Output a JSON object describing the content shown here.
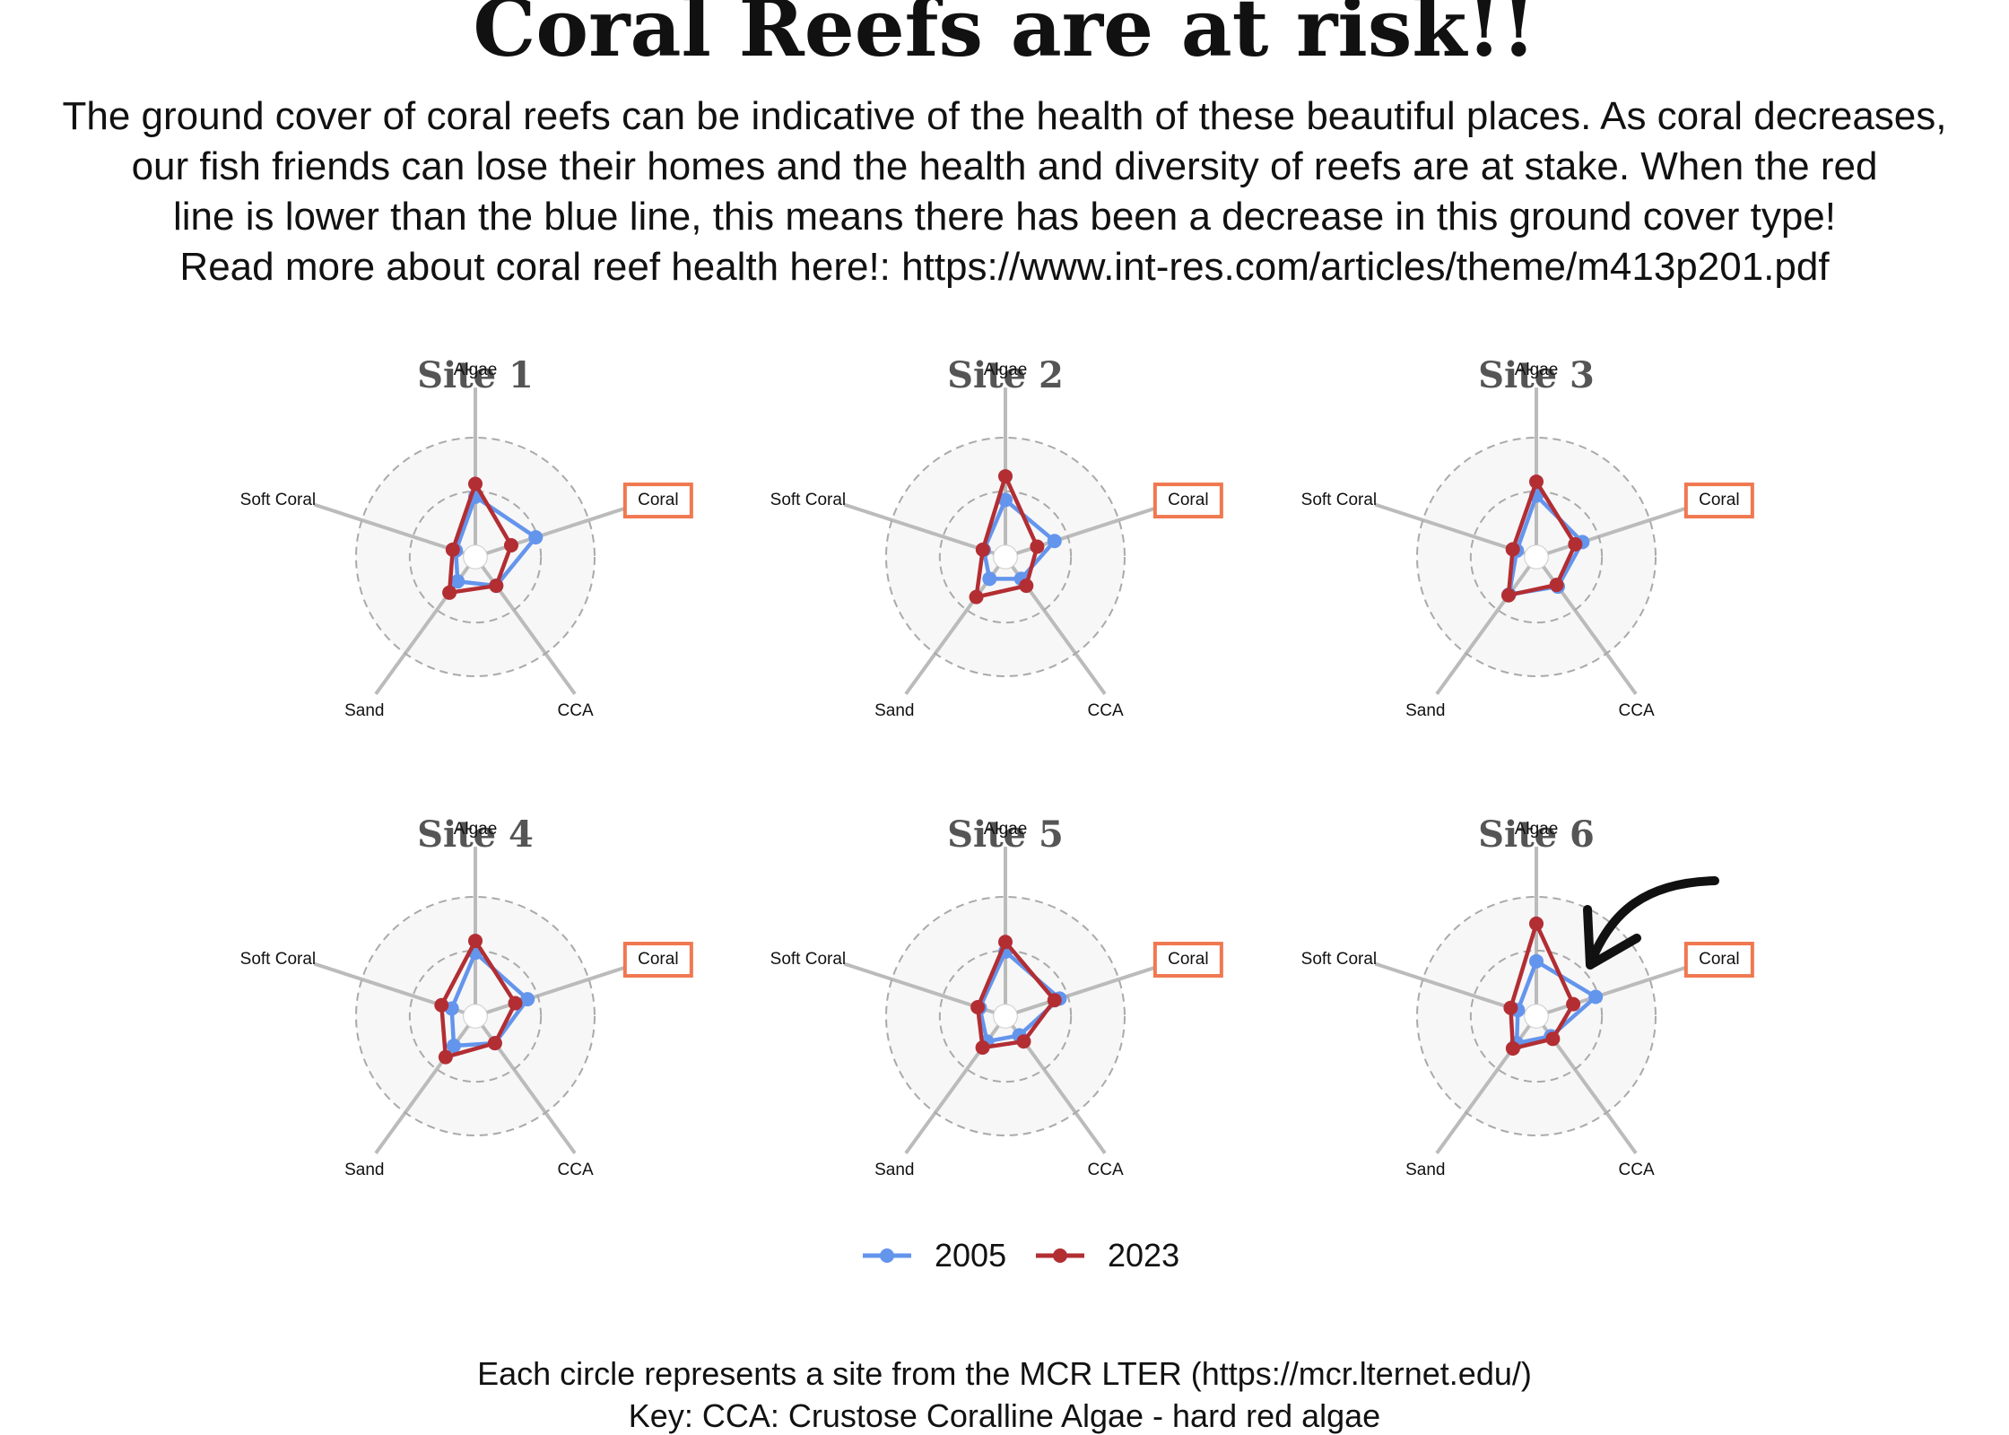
{
  "title": "Coral Reefs are at risk!!",
  "description_lines": [
    "The ground cover of coral reefs can be indicative of the health of these beautiful places. As coral decreases,",
    "our fish friends can lose their homes and the health and diversity of reefs are at stake. When the red",
    "line is lower than the blue line, this means there has been a decrease in this ground cover type!",
    "Read more about coral reef health here!: https://www.int-res.com/articles/theme/m413p201.pdf"
  ],
  "footer_lines": [
    "Each circle represents a site from the MCR LTER (https://mcr.lternet.edu/)",
    "Key: CCA: Crustose Coralline Algae - hard red algae"
  ],
  "colors": {
    "2005": "#6495ed",
    "2023": "#b22e33",
    "highlight": "#f07850",
    "grid": "#aaaaaa",
    "spoke": "#bbbbbb",
    "panel_bg": "#f7f7f7"
  },
  "chart_data": {
    "type": "radar",
    "axes": [
      "Algae",
      "Coral",
      "CCA",
      "Sand",
      "Soft Coral"
    ],
    "highlighted_axis": "Coral",
    "r_range": [
      0,
      1
    ],
    "grid_circles": [
      0.5,
      1.0
    ],
    "legend": {
      "position": "bottom",
      "entries": [
        "2005",
        "2023"
      ]
    },
    "sites": [
      {
        "name": "Site 1",
        "series": [
          {
            "name": "2005",
            "values": [
              0.45,
              0.48,
              0.22,
              0.17,
              0.08
            ]
          },
          {
            "name": "2023",
            "values": [
              0.57,
              0.24,
              0.22,
              0.3,
              0.11
            ]
          }
        ]
      },
      {
        "name": "Site 2",
        "series": [
          {
            "name": "2005",
            "values": [
              0.42,
              0.37,
              0.14,
              0.14,
              0.1
            ]
          },
          {
            "name": "2023",
            "values": [
              0.64,
              0.2,
              0.22,
              0.35,
              0.11
            ]
          }
        ]
      },
      {
        "name": "Site 3",
        "series": [
          {
            "name": "2005",
            "values": [
              0.46,
              0.34,
              0.23,
              0.32,
              0.08
            ]
          },
          {
            "name": "2023",
            "values": [
              0.59,
              0.27,
              0.21,
              0.33,
              0.12
            ]
          }
        ]
      },
      {
        "name": "Site 4",
        "series": [
          {
            "name": "2005",
            "values": [
              0.48,
              0.4,
              0.2,
              0.23,
              0.12
            ]
          },
          {
            "name": "2023",
            "values": [
              0.59,
              0.28,
              0.2,
              0.36,
              0.22
            ]
          }
        ]
      },
      {
        "name": "Site 5",
        "series": [
          {
            "name": "2005",
            "values": [
              0.49,
              0.42,
              0.11,
              0.18,
              0.14
            ]
          },
          {
            "name": "2023",
            "values": [
              0.58,
              0.37,
              0.18,
              0.25,
              0.16
            ]
          }
        ]
      },
      {
        "name": "Site 6",
        "series": [
          {
            "name": "2005",
            "values": [
              0.4,
              0.47,
              0.12,
              0.2,
              0.07
            ]
          },
          {
            "name": "2023",
            "values": [
              0.75,
              0.25,
              0.15,
              0.26,
              0.14
            ]
          }
        ]
      }
    ]
  }
}
